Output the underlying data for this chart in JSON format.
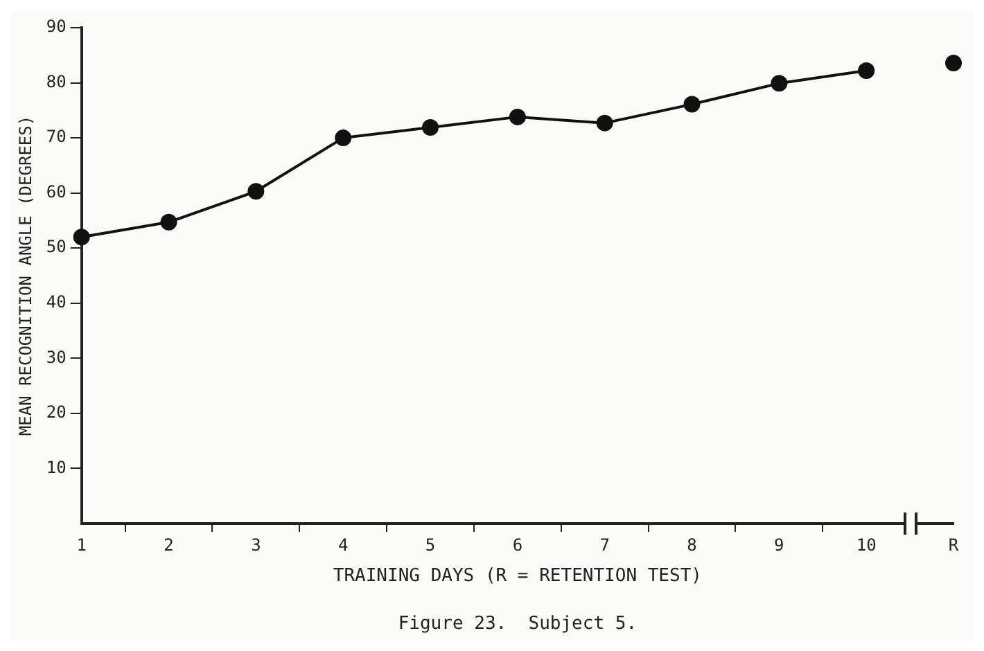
{
  "chart_data": {
    "type": "line",
    "xlabel": "TRAINING DAYS (R = RETENTION TEST)",
    "ylabel": "MEAN RECOGNITION ANGLE (DEGREES)",
    "annotations": [
      "Figure 23.  Subject 5."
    ],
    "categories": [
      "1",
      "2",
      "3",
      "4",
      "5",
      "6",
      "7",
      "8",
      "9",
      "10",
      "R"
    ],
    "series": [
      {
        "color": "#111111",
        "values": [
          52.0,
          54.7,
          60.3,
          70.0,
          71.9,
          73.8,
          72.7,
          76.1,
          79.9,
          82.2,
          null
        ]
      },
      {
        "color": "#111111",
        "values": [
          null,
          null,
          null,
          null,
          null,
          null,
          null,
          null,
          null,
          null,
          83.6
        ]
      }
    ],
    "ylim": [
      0,
      90
    ],
    "yticks": [
      10,
      20,
      30,
      40,
      50,
      60,
      70,
      80,
      90
    ],
    "grid": false,
    "legend": false,
    "marker": "circle",
    "line_style": "solid"
  }
}
